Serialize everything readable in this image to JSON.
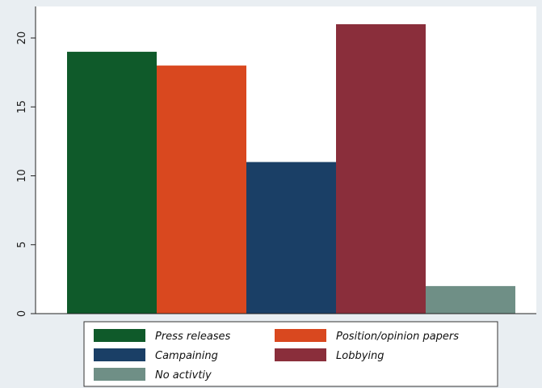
{
  "chart_data": {
    "type": "bar",
    "title": "",
    "xlabel": "",
    "ylabel": "",
    "ylim": [
      0,
      22
    ],
    "yticks": [
      0,
      5,
      10,
      15,
      20
    ],
    "grid": false,
    "legend_position": "bottom",
    "series": [
      {
        "name": "Press releases",
        "value": 19,
        "color": "#0f5a2a"
      },
      {
        "name": "Position/opinion papers",
        "value": 18,
        "color": "#d9481f"
      },
      {
        "name": "Campaining",
        "value": 11,
        "color": "#1a3f66"
      },
      {
        "name": "Lobbying",
        "value": 21,
        "color": "#8a2e3b"
      },
      {
        "name": "No activtiy",
        "value": 2,
        "color": "#6f8f86"
      }
    ]
  }
}
